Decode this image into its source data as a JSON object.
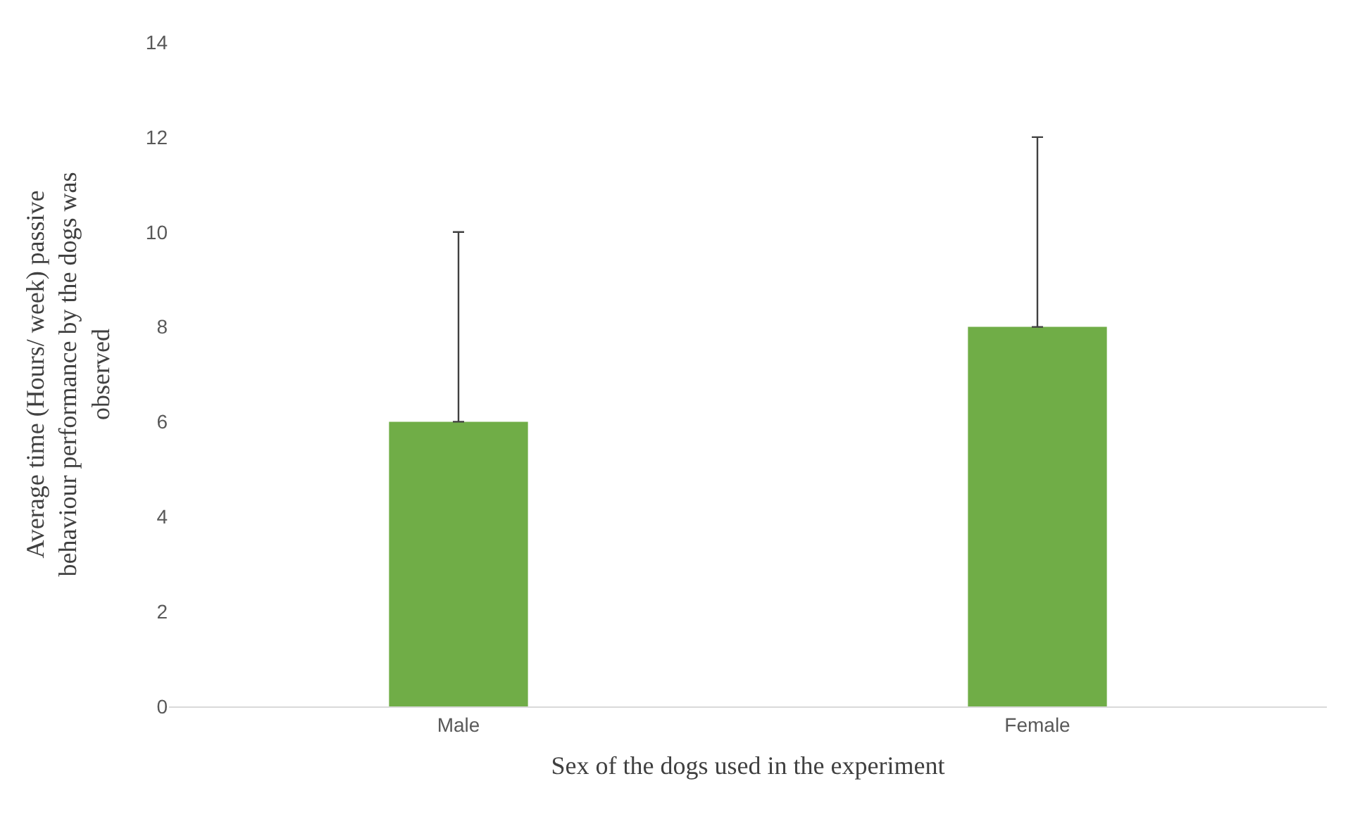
{
  "chart_data": {
    "type": "bar",
    "xlabel": "Sex of the dogs used in the experiment",
    "ylabel": "Average time (Hours/ week) passive behaviour performance by the dogs was observed",
    "categories": [
      "Male",
      "Female"
    ],
    "values": [
      6,
      8
    ],
    "errors": [
      [
        6,
        10
      ],
      [
        8,
        12
      ]
    ],
    "color": "#70ad47",
    "ylim": [
      0,
      14
    ],
    "yticks": [
      0,
      2,
      4,
      6,
      8,
      10,
      12,
      14
    ],
    "grid": false
  }
}
